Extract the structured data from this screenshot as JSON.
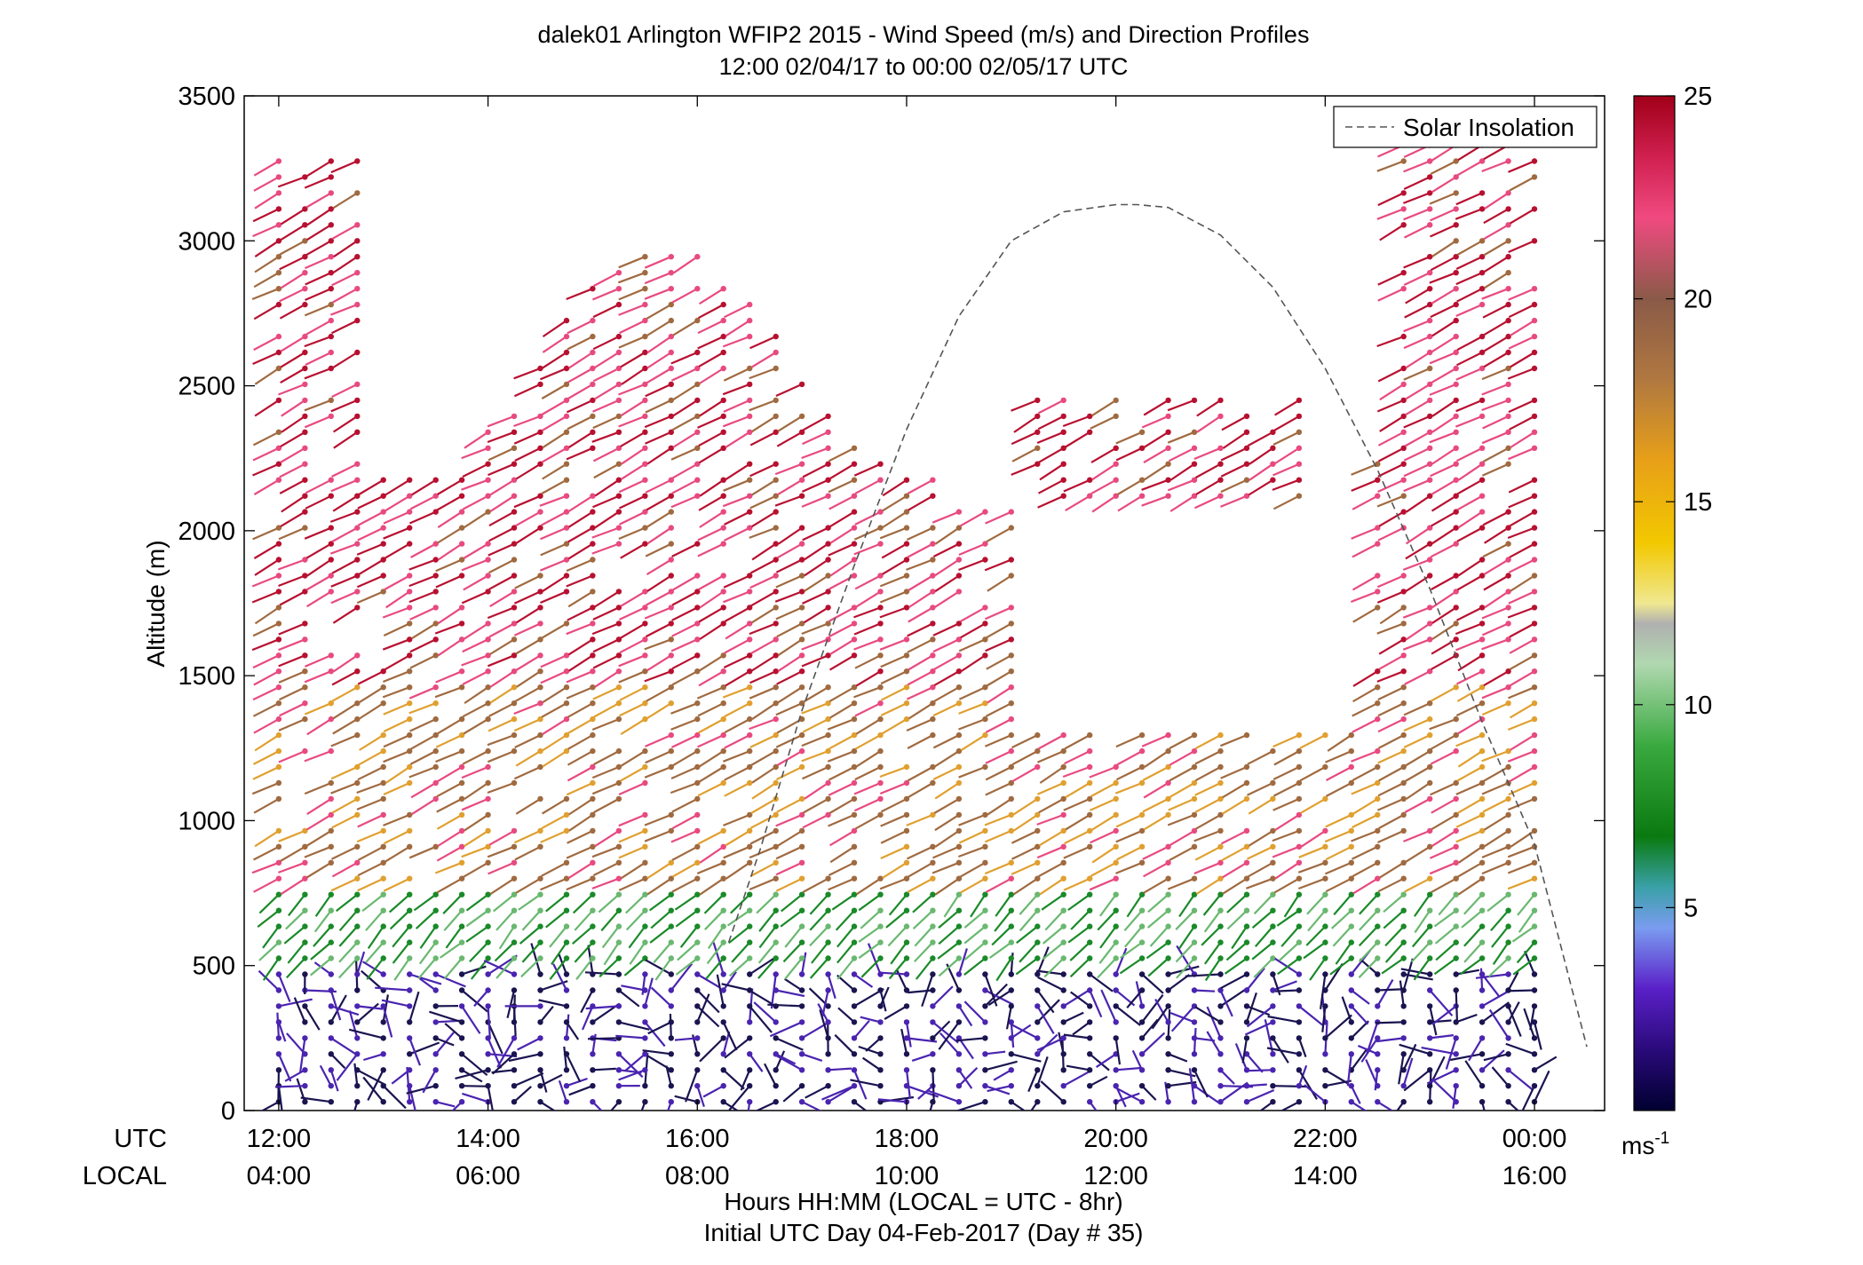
{
  "chart_data": {
    "type": "wind-barb-profile",
    "title": "dalek01 Arlington WFIP2 2015 - Wind Speed (m/s) and Direction Profiles",
    "subtitle": "12:00 02/04/17 to 00:00 02/05/17  UTC",
    "ylabel": "Altitude (m)",
    "xlabel": "Hours HH:MM  (LOCAL = UTC - 8hr)",
    "xlabel2": "Initial UTC Day 04-Feb-2017 (Day # 35)",
    "x_row_labels": {
      "utc": "UTC",
      "local": "LOCAL"
    },
    "utc_ticks": [
      "12:00",
      "14:00",
      "16:00",
      "18:00",
      "20:00",
      "22:00",
      "00:00"
    ],
    "local_ticks": [
      "04:00",
      "06:00",
      "08:00",
      "10:00",
      "12:00",
      "14:00",
      "16:00"
    ],
    "xlim_hours": [
      11.67,
      24.67
    ],
    "ylim": [
      0,
      3500
    ],
    "y_ticks": [
      0,
      500,
      1000,
      1500,
      2000,
      2500,
      3000,
      3500
    ],
    "legend": {
      "label": "Solar Insolation",
      "placement": "top-right",
      "style": "dashed"
    },
    "colorbar": {
      "range": [
        0,
        25
      ],
      "ticks": [
        5,
        10,
        15,
        20,
        25
      ],
      "unit_base": "ms",
      "unit_exp": "-1"
    },
    "solar_insolation": {
      "hours": [
        16.3,
        16.6,
        17.0,
        17.5,
        18.0,
        18.5,
        19.0,
        19.5,
        20.0,
        20.2,
        20.5,
        21.0,
        21.5,
        22.0,
        22.5,
        23.0,
        23.5,
        24.0,
        24.5
      ],
      "altitude": [
        580,
        900,
        1380,
        1880,
        2350,
        2740,
        3000,
        3100,
        3125,
        3125,
        3115,
        3020,
        2840,
        2560,
        2210,
        1800,
        1340,
        920,
        220
      ]
    },
    "wind_profiles": {
      "profile_interval_min": 15,
      "bands": [
        {
          "from_m": 0,
          "to_m": 500,
          "speed_ms": 2,
          "direction": "variable"
        },
        {
          "from_m": 500,
          "to_m": 800,
          "speed_ms": 8,
          "direction": "westerly"
        },
        {
          "from_m": 800,
          "to_m": 1500,
          "speed_ms": 20,
          "direction": "southwesterly"
        },
        {
          "from_m": 1500,
          "to_m": 3500,
          "speed_ms": 23,
          "direction": "southwesterly"
        }
      ]
    }
  }
}
